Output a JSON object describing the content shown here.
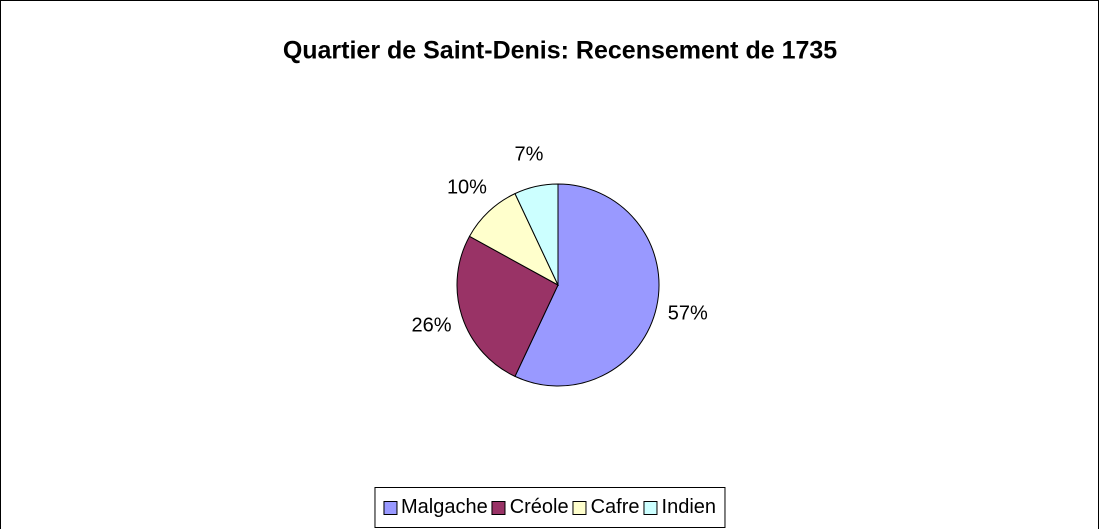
{
  "chart_data": {
    "type": "pie",
    "title": "Quartier de Saint-Denis: Recensement de 1735",
    "categories": [
      "Malgache",
      "Créole",
      "Cafre",
      "Indien"
    ],
    "values": [
      57,
      26,
      10,
      7
    ],
    "value_labels": [
      "57%",
      "26%",
      "10%",
      "7%"
    ],
    "colors": [
      "#9999ff",
      "#993366",
      "#ffffcc",
      "#ccffff"
    ],
    "legend": "bottom"
  }
}
